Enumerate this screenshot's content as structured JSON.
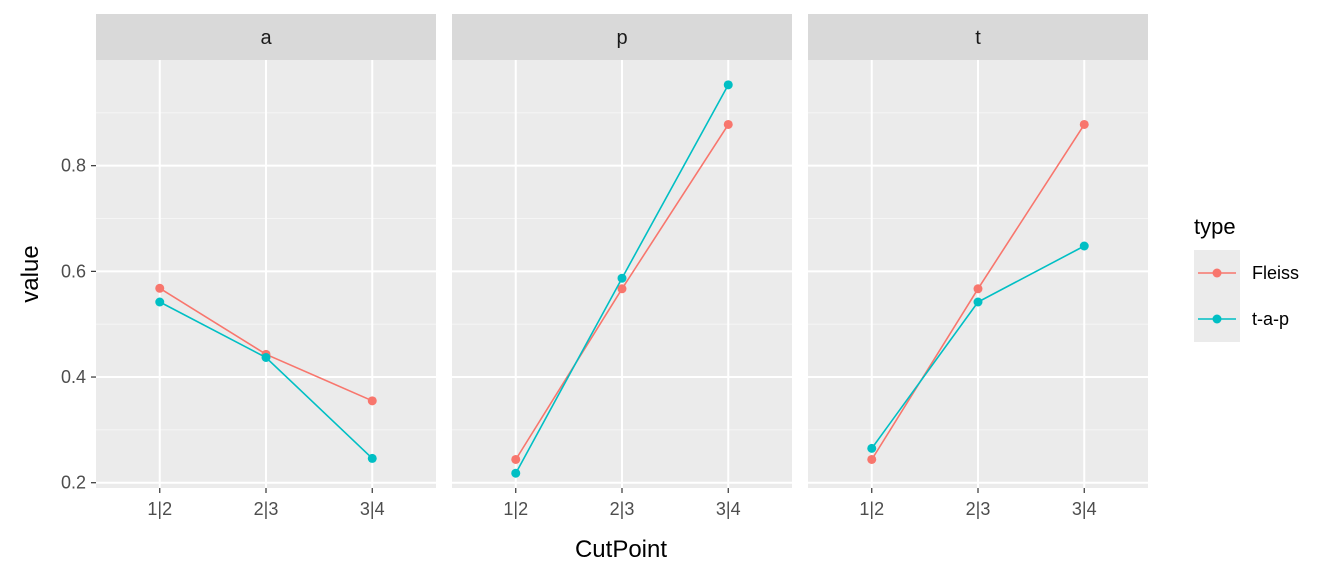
{
  "chart_data": {
    "type": "line",
    "xlabel": "CutPoint",
    "ylabel": "value",
    "categories": [
      "1|2",
      "2|3",
      "3|4"
    ],
    "ylim": [
      0.19,
      1.0
    ],
    "yticks": [
      0.2,
      0.4,
      0.6,
      0.8
    ],
    "ytick_labels": [
      "0.2",
      "0.4",
      "0.6",
      "0.8"
    ],
    "legend": {
      "title": "type",
      "position": "right",
      "entries": [
        {
          "name": "Fleiss",
          "color": "#F8766D"
        },
        {
          "name": "t-a-p",
          "color": "#00BFC4"
        }
      ]
    },
    "panels": [
      {
        "label": "a",
        "series": [
          {
            "name": "Fleiss",
            "color": "#F8766D",
            "values": [
              0.568,
              0.443,
              0.355
            ]
          },
          {
            "name": "t-a-p",
            "color": "#00BFC4",
            "values": [
              0.542,
              0.437,
              0.246
            ]
          }
        ]
      },
      {
        "label": "p",
        "series": [
          {
            "name": "Fleiss",
            "color": "#F8766D",
            "values": [
              0.244,
              0.567,
              0.878
            ]
          },
          {
            "name": "t-a-p",
            "color": "#00BFC4",
            "values": [
              0.218,
              0.587,
              0.953
            ]
          }
        ]
      },
      {
        "label": "t",
        "series": [
          {
            "name": "Fleiss",
            "color": "#F8766D",
            "values": [
              0.244,
              0.567,
              0.878
            ]
          },
          {
            "name": "t-a-p",
            "color": "#00BFC4",
            "values": [
              0.265,
              0.542,
              0.648
            ]
          }
        ]
      }
    ]
  }
}
